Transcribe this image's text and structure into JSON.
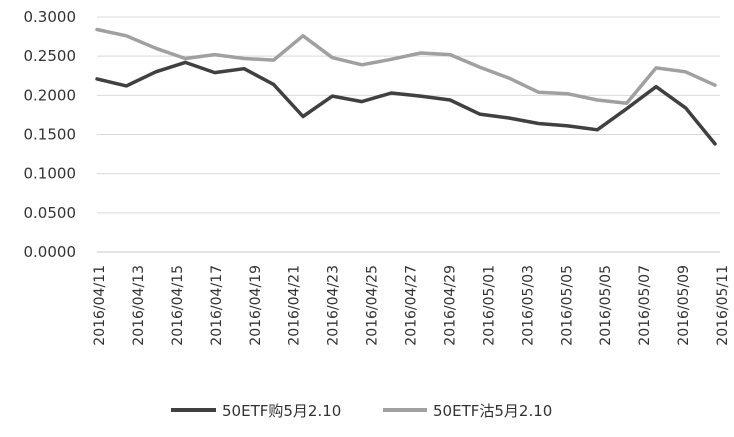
{
  "chart_data": {
    "type": "line",
    "ylim": [
      0,
      0.3
    ],
    "y_ticks": [
      "0.0000",
      "0.0500",
      "0.1000",
      "0.1500",
      "0.2000",
      "0.2500",
      "0.3000"
    ],
    "grid": true,
    "legend_position": "bottom",
    "x": [
      "2016/04/11",
      "2016/04/12",
      "2016/04/13",
      "2016/04/14",
      "2016/04/15",
      "2016/04/18",
      "2016/04/19",
      "2016/04/20",
      "2016/04/21",
      "2016/04/22",
      "2016/04/25",
      "2016/04/26",
      "2016/04/27",
      "2016/04/28",
      "2016/04/29",
      "2016/05/03",
      "2016/05/04",
      "2016/05/05",
      "2016/05/06",
      "2016/05/09",
      "2016/05/10",
      "2016/05/11"
    ],
    "x_tick_labels": [
      "2016/04/11",
      "2016/04/13",
      "2016/04/15",
      "2016/04/17",
      "2016/04/19",
      "2016/04/21",
      "2016/04/23",
      "2016/04/25",
      "2016/04/27",
      "2016/04/29",
      "2016/05/01",
      "2016/05/03",
      "2016/05/05",
      "2016/05/05",
      "2016/05/07",
      "2016/05/09",
      "2016/05/11"
    ],
    "series": [
      {
        "name": "50ETF购5月2.10",
        "color": "#404040",
        "values": [
          0.221,
          0.212,
          0.23,
          0.242,
          0.229,
          0.234,
          0.214,
          0.173,
          0.199,
          0.192,
          0.203,
          0.199,
          0.194,
          0.176,
          0.171,
          0.164,
          0.161,
          0.156,
          0.183,
          0.211,
          0.184,
          0.138
        ]
      },
      {
        "name": "50ETF沽5月2.10",
        "color": "#a0a0a0",
        "values": [
          0.284,
          0.276,
          0.26,
          0.247,
          0.252,
          0.247,
          0.245,
          0.276,
          0.248,
          0.239,
          0.246,
          0.254,
          0.252,
          0.236,
          0.222,
          0.204,
          0.202,
          0.194,
          0.19,
          0.235,
          0.23,
          0.213
        ]
      }
    ]
  }
}
